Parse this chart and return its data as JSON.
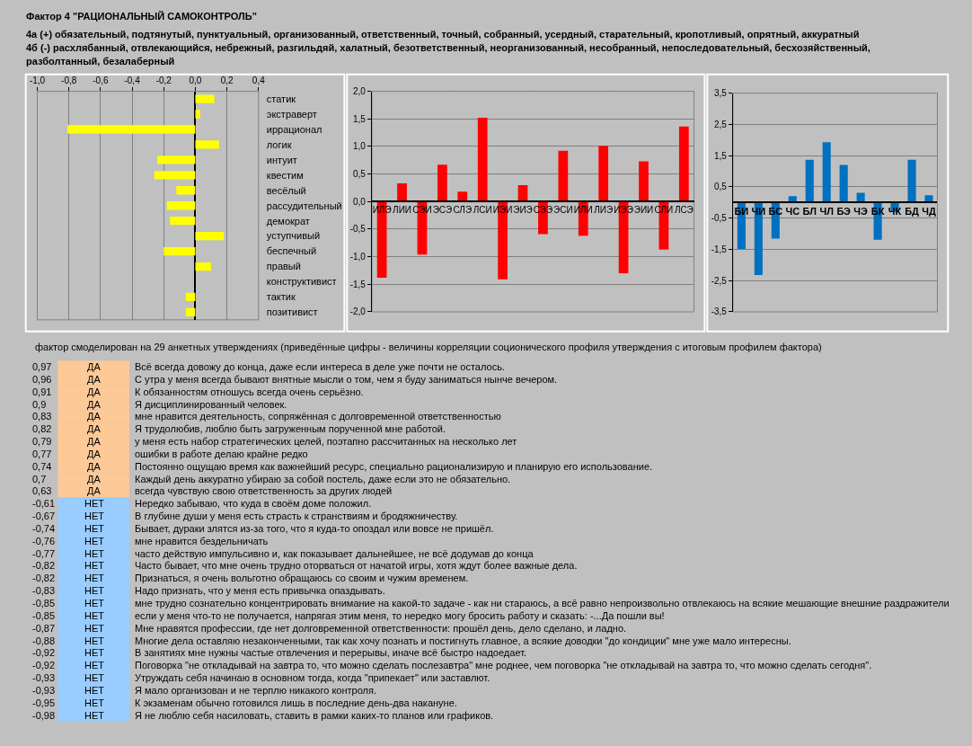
{
  "chart_data": [
    {
      "type": "bar",
      "orientation": "horizontal",
      "title": "Фактор 4 \"РАЦИОНАЛЬНЫЙ САМОКОНТРОЛЬ\"",
      "subtitle": "4а (+) обязательный, подтянутый, пунктуальный, организованный, ответственный, точный, собранный, усердный, старательный, кропотливый, опрятный, аккуратный",
      "annotations": [
        "4б (-) расхлябанный, отвлекающийся, небрежный, разгильдяй, халатный, безответственный, неорганизованный, несобранный, непоследовательный, бесхозяйственный, разболтанный, безалаберный"
      ],
      "categories": [
        "статик",
        "экстраверт",
        "иррационал",
        "логик",
        "интуит",
        "квестим",
        "весёлый",
        "рассудительный",
        "демократ",
        "уступчивый",
        "беспечный",
        "правый",
        "конструктивист",
        "тактик",
        "позитивист"
      ],
      "values": [
        0.12,
        0.03,
        -0.81,
        0.15,
        -0.24,
        -0.26,
        -0.12,
        -0.18,
        -0.16,
        0.18,
        -0.2,
        0.1,
        0,
        -0.06,
        -0.06
      ],
      "color": "#ffff00",
      "xlim": [
        -1.0,
        0.4
      ],
      "xticks": [
        {
          "value": -1.0,
          "label": "-1,0"
        },
        {
          "value": -0.8,
          "label": "-0,8"
        },
        {
          "value": -0.6,
          "label": "-0,6"
        },
        {
          "value": -0.4,
          "label": "-0,4"
        },
        {
          "value": -0.2,
          "label": "-0,2"
        },
        {
          "value": 0,
          "label": "0,0"
        },
        {
          "value": 0.2,
          "label": "0,2"
        },
        {
          "value": 0.4,
          "label": "0,4"
        }
      ],
      "grid": true
    },
    {
      "type": "bar",
      "categories": [
        "ИЛЭ",
        "ЛИИ",
        "СЭИ",
        "ЭСЭ",
        "СЛЭ",
        "ЛСИ",
        "ИЭИ",
        "ЭИЭ",
        "СЭЭ",
        "ЭСИ",
        "ИЛИ",
        "ЛИЭ",
        "ИЭЭ",
        "ЭИИ",
        "СЛИ",
        "ЛСЭ"
      ],
      "values": [
        -1.38,
        0.33,
        -0.96,
        0.67,
        0.18,
        1.52,
        -1.41,
        0.3,
        -0.59,
        0.92,
        -0.62,
        1.01,
        -1.3,
        0.73,
        -0.87,
        1.36
      ],
      "color": "#ff0000",
      "ylim": [
        -2.0,
        2.0
      ],
      "yticks": [
        {
          "value": -2.0,
          "label": "-2,0"
        },
        {
          "value": -1.5,
          "label": "-1,5"
        },
        {
          "value": -1.0,
          "label": "-1,0"
        },
        {
          "value": -0.5,
          "label": "-0,5"
        },
        {
          "value": 0,
          "label": "0,0"
        },
        {
          "value": 0.5,
          "label": "0,5"
        },
        {
          "value": 1.0,
          "label": "1,0"
        },
        {
          "value": 1.5,
          "label": "1,5"
        },
        {
          "value": 2.0,
          "label": "2,0"
        }
      ],
      "grid": true
    },
    {
      "type": "bar",
      "categories": [
        "БИ",
        "ЧИ",
        "БС",
        "ЧС",
        "БЛ",
        "ЧЛ",
        "БЭ",
        "ЧЭ",
        "БК",
        "ЧК",
        "БД",
        "ЧД"
      ],
      "values": [
        -1.49,
        -2.32,
        -1.16,
        0.2,
        1.37,
        1.93,
        1.2,
        0.31,
        -1.19,
        -0.3,
        1.37,
        0.23
      ],
      "color": "#0070c0",
      "ylim": [
        -3.5,
        3.5
      ],
      "yticks": [
        {
          "value": -3.5,
          "label": "-3,5"
        },
        {
          "value": -2.5,
          "label": "-2,5"
        },
        {
          "value": -1.5,
          "label": "-1,5"
        },
        {
          "value": -0.5,
          "label": "-0,5"
        },
        {
          "value": 0.5,
          "label": "0,5"
        },
        {
          "value": 1.5,
          "label": "1,5"
        },
        {
          "value": 2.5,
          "label": "2,5"
        },
        {
          "value": 3.5,
          "label": "3,5"
        }
      ],
      "grid": true
    },
    {
      "type": "other",
      "title": "фактор смоделирован на 29 анкетных утверждениях (приведённые цифры - величины корреляции соционического профиля утверждения с итоговым профилем фактора)",
      "categories": [
        "Всё всегда довожу до конца, даже если интереса в деле уже почти не осталось.",
        "С утра у меня всегда бывают внятные мысли о том, чем я буду заниматься нынче вечером.",
        "К обязанностям отношусь всегда очень серьёзно.",
        "Я дисциплинированный человек.",
        "мне нравится деятельность, сопряжённая с долговременной ответственностью",
        "Я трудолюбив, люблю быть загруженным порученной мне работой.",
        "у меня есть набор стратегических целей, поэтапно рассчитанных на несколько лет",
        "ошибки в работе делаю крайне редко",
        "Постоянно ощущаю время как важнейший ресурс, специально рационализирую и планирую его использование.",
        "Каждый день аккуратно убираю за собой постель, даже если это не обязательно.",
        "всегда чувствую свою ответственность за других людей",
        "Нередко забываю, что куда в своём доме положил.",
        "В глубине души у меня есть страсть к странствиям и бродяжничеству.",
        "Бывает, дураки злятся из-за того, что я куда-то опоздал или вовсе не пришёл.",
        "мне нравится бездельничать",
        "часто действую импульсивно и, как показывает дальнейшее, не всё додумав до конца",
        "Часто бывает, что мне очень трудно оторваться от начатой игры, хотя ждут более важные дела.",
        "Признаться, я очень вольготно обращаюсь со своим и чужим временем.",
        "Надо признать, что у меня есть привычка опаздывать.",
        "мне трудно сознательно концентрировать внимание на какой-то задаче - как ни стараюсь, а всё равно непроизвольно отвлекаюсь на всякие мешающие внешние раздражители",
        "если у меня что-то не получается, напрягая этим меня, то нередко могу бросить работу и сказать: -...Да пошли вы!",
        "Мне нравятся профессии, где нет долговременной ответственности: прошёл день, дело сделано, и ладно.",
        "Многие дела оставляю незаконченными, так как хочу познать и постигнуть главное, а всякие доводки \"до кондиции\" мне уже мало интересны.",
        "В занятиях мне нужны частые отвлечения и перерывы, иначе всё быстро надоедает.",
        "Поговорка \"не откладывай на завтра то, что можно сделать послезавтра\" мне роднее, чем поговорка \"не откладывай на завтра то, что можно сделать сегодня\".",
        "Утруждать себя начинаю в основном тогда, когда \"припекает\" или заставлют.",
        "Я мало организован и не терплю никакого контроля.",
        "К экзаменам обычно готовился лишь в последние день-два накануне.",
        "Я не люблю себя насиловать, ставить в рамки каких-то планов или графиков."
      ],
      "values": [
        0.97,
        0.96,
        0.91,
        0.9,
        0.83,
        0.82,
        0.79,
        0.77,
        0.74,
        0.7,
        0.63,
        -0.61,
        -0.67,
        -0.74,
        -0.76,
        -0.77,
        -0.82,
        -0.82,
        -0.83,
        -0.85,
        -0.85,
        -0.87,
        -0.88,
        -0.92,
        -0.92,
        -0.93,
        -0.93,
        -0.95,
        -0.98
      ],
      "value_labels": [
        "0,97",
        "0,96",
        "0,91",
        "0,9",
        "0,83",
        "0,82",
        "0,79",
        "0,77",
        "0,74",
        "0,7",
        "0,63",
        "-0,61",
        "-0,67",
        "-0,74",
        "-0,76",
        "-0,77",
        "-0,82",
        "-0,82",
        "-0,83",
        "-0,85",
        "-0,85",
        "-0,87",
        "-0,88",
        "-0,92",
        "-0,92",
        "-0,93",
        "-0,93",
        "-0,95",
        "-0,98"
      ],
      "cell_labels": [
        "ДА",
        "ДА",
        "ДА",
        "ДА",
        "ДА",
        "ДА",
        "ДА",
        "ДА",
        "ДА",
        "ДА",
        "ДА",
        "НЕТ",
        "НЕТ",
        "НЕТ",
        "НЕТ",
        "НЕТ",
        "НЕТ",
        "НЕТ",
        "НЕТ",
        "НЕТ",
        "НЕТ",
        "НЕТ",
        "НЕТ",
        "НЕТ",
        "НЕТ",
        "НЕТ",
        "НЕТ",
        "НЕТ",
        "НЕТ"
      ],
      "colors": [
        "#fcc997",
        "#fcc997",
        "#fcc997",
        "#fcc997",
        "#fcc997",
        "#fcc997",
        "#fcc997",
        "#fcc997",
        "#fcc997",
        "#fcc997",
        "#fcc997",
        "#99ccff",
        "#99ccff",
        "#99ccff",
        "#99ccff",
        "#99ccff",
        "#99ccff",
        "#99ccff",
        "#99ccff",
        "#99ccff",
        "#99ccff",
        "#99ccff",
        "#99ccff",
        "#99ccff",
        "#99ccff",
        "#99ccff",
        "#99ccff",
        "#99ccff",
        "#99ccff"
      ]
    }
  ]
}
